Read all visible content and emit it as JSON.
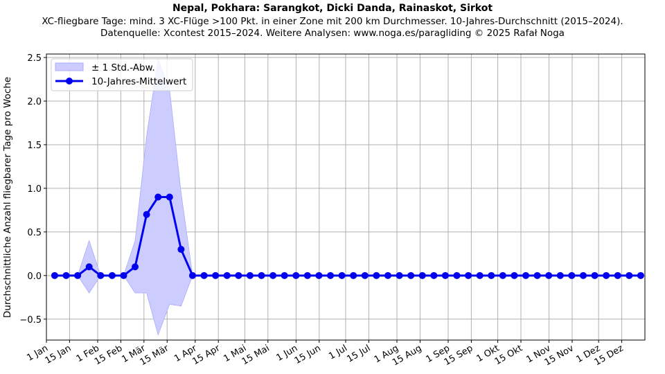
{
  "chart_data": {
    "type": "line",
    "title": "Nepal, Pokhara: Sarangkot, Dicki Danda, Rainaskot, Sirkot",
    "subtitle_lines": [
      "XC-fliegbare Tage: mind. 3 XC-Flüge >100 Pkt. in einer Zone mit 200 km Durchmesser. 10-Jahres-Durchschnitt (2015–2024).",
      "Datenquelle: Xcontest 2015–2024. Weitere Analysen: www.noga.es/paragliding © 2025 Rafał Noga"
    ],
    "xlabel": "",
    "ylabel": "Durchschnittliche Anzahl fliegbarer Tage pro Woche",
    "xlim": [
      0,
      362
    ],
    "ylim": [
      -0.74,
      2.54
    ],
    "grid": true,
    "legend_position": "top-left",
    "legend": [
      "± 1 Std.-Abw.",
      "10-Jahres-Mittelwert"
    ],
    "yticks": [
      -0.5,
      0.0,
      0.5,
      1.0,
      1.5,
      2.0,
      2.5
    ],
    "ytick_labels": [
      "−0.5",
      "0.0",
      "0.5",
      "1.0",
      "1.5",
      "2.0",
      "2.5"
    ],
    "xticks": [
      0,
      14,
      31,
      45,
      59,
      73,
      90,
      104,
      120,
      134,
      151,
      165,
      181,
      195,
      212,
      226,
      243,
      257,
      273,
      287,
      304,
      318,
      334,
      348
    ],
    "xtick_labels": [
      "1 Jan",
      "15 Jan",
      "1 Feb",
      "15 Feb",
      "1 Mär",
      "15 Mär",
      "1 Apr",
      "15 Apr",
      "1 Mai",
      "15 Mai",
      "1 Jun",
      "15 Jun",
      "1 Jul",
      "15 Jul",
      "1 Aug",
      "15 Aug",
      "1 Sep",
      "15 Sep",
      "1 Okt",
      "15 Okt",
      "1 Nov",
      "15 Nov",
      "1 Dez",
      "15 Dez"
    ],
    "x_start_day": 5,
    "x_step_days": 6.95,
    "series": [
      {
        "name": "10-Jahres-Mittelwert",
        "color": "#0000ee",
        "values": [
          0,
          0,
          0,
          0.1,
          0,
          0,
          0,
          0.1,
          0.7,
          0.9,
          0.9,
          0.3,
          0,
          0,
          0,
          0,
          0,
          0,
          0,
          0,
          0,
          0,
          0,
          0,
          0,
          0,
          0,
          0,
          0,
          0,
          0,
          0,
          0,
          0,
          0,
          0,
          0,
          0,
          0,
          0,
          0,
          0,
          0,
          0,
          0,
          0,
          0,
          0,
          0,
          0,
          0,
          0
        ]
      },
      {
        "name": "± 1 Std.-Abw.",
        "color": "#ccccff",
        "upper": [
          0,
          0,
          0,
          0.4,
          0,
          0,
          0,
          0.4,
          1.6,
          2.48,
          2.13,
          0.95,
          0,
          0,
          0,
          0,
          0,
          0,
          0,
          0,
          0,
          0,
          0,
          0,
          0,
          0,
          0,
          0,
          0,
          0,
          0,
          0,
          0,
          0,
          0,
          0,
          0,
          0,
          0,
          0,
          0,
          0,
          0,
          0,
          0,
          0,
          0,
          0,
          0,
          0,
          0,
          0
        ],
        "lower": [
          0,
          0,
          0,
          -0.2,
          0,
          0,
          0,
          -0.2,
          -0.2,
          -0.68,
          -0.33,
          -0.35,
          0,
          0,
          0,
          0,
          0,
          0,
          0,
          0,
          0,
          0,
          0,
          0,
          0,
          0,
          0,
          0,
          0,
          0,
          0,
          0,
          0,
          0,
          0,
          0,
          0,
          0,
          0,
          0,
          0,
          0,
          0,
          0,
          0,
          0,
          0,
          0,
          0,
          0,
          0,
          0
        ]
      }
    ]
  }
}
